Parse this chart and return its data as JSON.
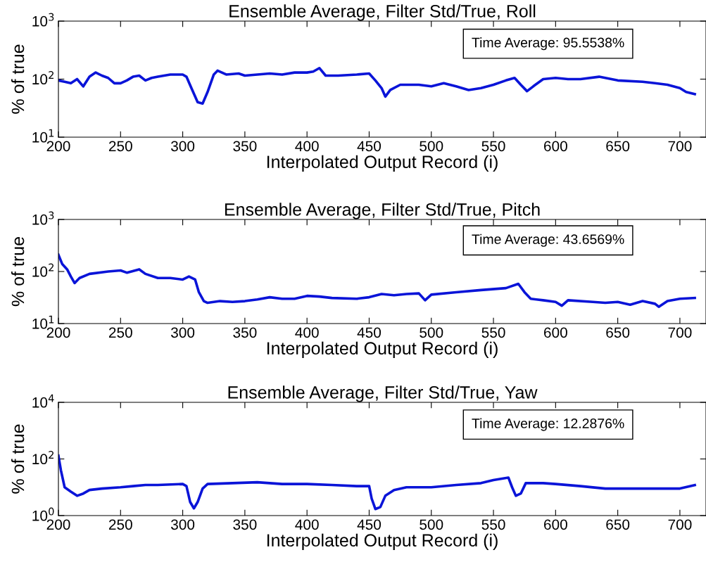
{
  "chart_data": [
    {
      "type": "line",
      "title": "Ensemble Average, Filter Std/True, Roll",
      "xlabel": "Interpolated Output Record (i)",
      "ylabel": "% of true",
      "log": "y",
      "grid": false,
      "legend": false,
      "xlim": [
        200,
        721
      ],
      "xticks": [
        200,
        250,
        300,
        350,
        400,
        450,
        500,
        550,
        600,
        650,
        700
      ],
      "ylim": [
        10,
        1000
      ],
      "yticks": [
        {
          "value": 10,
          "label": "10$^{1}$"
        },
        {
          "value": 100,
          "label": "10$^{2}$"
        },
        {
          "value": 1000,
          "label": "10$^{3}$"
        }
      ],
      "annotations": [
        "Time Average: 95.5538%"
      ],
      "series": [
        {
          "color": "#0a14d8",
          "x": [
            200,
            205,
            210,
            215,
            220,
            225,
            230,
            235,
            240,
            245,
            250,
            255,
            260,
            265,
            270,
            275,
            280,
            290,
            300,
            303,
            307,
            312,
            316,
            320,
            325,
            328,
            335,
            345,
            350,
            360,
            370,
            380,
            390,
            400,
            405,
            410,
            415,
            425,
            440,
            450,
            455,
            460,
            463,
            467,
            475,
            490,
            500,
            510,
            520,
            530,
            540,
            550,
            560,
            567,
            572,
            577,
            582,
            590,
            600,
            610,
            620,
            635,
            650,
            670,
            680,
            690,
            700,
            705,
            712
          ],
          "values": [
            95,
            90,
            85,
            100,
            75,
            110,
            130,
            115,
            105,
            85,
            85,
            95,
            110,
            115,
            95,
            105,
            110,
            120,
            120,
            110,
            70,
            40,
            38,
            60,
            120,
            140,
            120,
            125,
            115,
            120,
            125,
            120,
            130,
            130,
            135,
            155,
            115,
            115,
            120,
            125,
            95,
            70,
            50,
            65,
            80,
            80,
            75,
            85,
            75,
            65,
            70,
            80,
            95,
            105,
            80,
            62,
            75,
            100,
            105,
            100,
            100,
            110,
            95,
            90,
            85,
            80,
            70,
            60,
            55
          ]
        }
      ]
    },
    {
      "type": "line",
      "title": "Ensemble Average, Filter Std/True, Pitch",
      "xlabel": "Interpolated Output Record (i)",
      "ylabel": "% of true",
      "log": "y",
      "grid": false,
      "legend": false,
      "xlim": [
        200,
        721
      ],
      "xticks": [
        200,
        250,
        300,
        350,
        400,
        450,
        500,
        550,
        600,
        650,
        700
      ],
      "ylim": [
        10,
        1000
      ],
      "yticks": [
        {
          "value": 10,
          "label": "10$^{1}$"
        },
        {
          "value": 100,
          "label": "10$^{2}$"
        },
        {
          "value": 1000,
          "label": "10$^{3}$"
        }
      ],
      "annotations": [
        "Time Average: 43.6569%"
      ],
      "series": [
        {
          "color": "#0a14d8",
          "x": [
            200,
            203,
            207,
            210,
            213,
            217,
            225,
            240,
            250,
            255,
            265,
            270,
            280,
            290,
            300,
            305,
            310,
            313,
            317,
            320,
            330,
            340,
            350,
            360,
            370,
            380,
            390,
            400,
            410,
            420,
            440,
            450,
            460,
            470,
            480,
            490,
            495,
            500,
            520,
            540,
            560,
            570,
            575,
            580,
            590,
            600,
            605,
            610,
            630,
            640,
            650,
            660,
            670,
            680,
            683,
            690,
            700,
            712
          ],
          "values": [
            210,
            140,
            110,
            80,
            60,
            75,
            90,
            100,
            105,
            95,
            110,
            90,
            75,
            75,
            70,
            80,
            70,
            40,
            27,
            25,
            27,
            26,
            27,
            29,
            32,
            30,
            30,
            34,
            33,
            31,
            30,
            32,
            37,
            35,
            37,
            38,
            28,
            36,
            40,
            44,
            48,
            58,
            40,
            30,
            28,
            26,
            22,
            28,
            26,
            25,
            26,
            23,
            27,
            24,
            21,
            27,
            30,
            31
          ]
        }
      ]
    },
    {
      "type": "line",
      "title": "Ensemble Average, Filter Std/True, Yaw",
      "xlabel": "Interpolated Output Record (i)",
      "ylabel": "% of true",
      "log": "y",
      "grid": false,
      "legend": false,
      "xlim": [
        200,
        721
      ],
      "xticks": [
        200,
        250,
        300,
        350,
        400,
        450,
        500,
        550,
        600,
        650,
        700
      ],
      "ylim": [
        1,
        10000
      ],
      "yticks": [
        {
          "value": 1,
          "label": "10$^{0}$"
        },
        {
          "value": 100,
          "label": "10$^{2}$"
        },
        {
          "value": 10000,
          "label": "10$^{4}$"
        }
      ],
      "annotations": [
        "Time Average: 12.2876%"
      ],
      "series": [
        {
          "color": "#0a14d8",
          "x": [
            200,
            202,
            205,
            210,
            215,
            220,
            225,
            235,
            250,
            260,
            270,
            280,
            300,
            303,
            306,
            309,
            312,
            316,
            320,
            340,
            360,
            380,
            400,
            420,
            440,
            450,
            452,
            455,
            459,
            463,
            470,
            480,
            500,
            520,
            540,
            550,
            562,
            565,
            568,
            572,
            576,
            590,
            600,
            620,
            640,
            660,
            680,
            700,
            712
          ],
          "values": [
            130,
            40,
            10,
            7,
            5,
            6,
            8,
            9,
            10,
            11,
            12,
            12,
            13,
            11,
            3,
            1.8,
            3,
            9,
            13,
            14,
            15,
            13,
            13,
            12,
            11,
            11,
            4,
            1.7,
            2,
            5,
            8,
            10,
            10,
            12,
            14,
            18,
            22,
            10,
            5,
            6,
            14,
            14,
            13,
            11,
            9,
            9,
            9,
            9,
            12
          ]
        }
      ]
    }
  ]
}
